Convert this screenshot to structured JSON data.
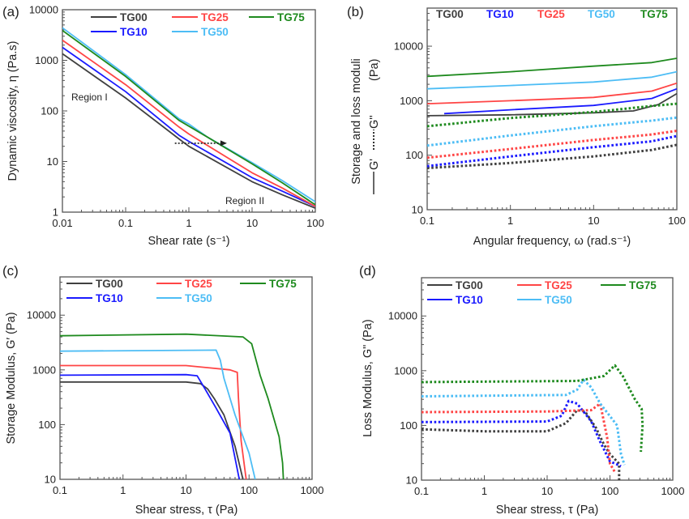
{
  "chart_data": [
    {
      "panel_label": "(a)",
      "type": "line",
      "xlabel": "Shear rate (s⁻¹)",
      "ylabel": "Dynamic viscosity, η (Pa.s)",
      "xscale": "log",
      "yscale": "log",
      "xlim": [
        0.01,
        100
      ],
      "ylim": [
        1,
        10000
      ],
      "x_ticks": [
        "0.01",
        "0.1",
        "1",
        "10",
        "100"
      ],
      "y_ticks": [
        "1",
        "10",
        "100",
        "1000",
        "10000"
      ],
      "grid": false,
      "legend": {
        "placement": "top",
        "style": "line"
      },
      "annotations": [
        "Region I",
        "Region II"
      ],
      "arrow": {
        "from": [
          0.6,
          23
        ],
        "to": [
          4,
          23
        ],
        "style": "dotted"
      },
      "series": [
        {
          "name": "TG00",
          "color": "#404040",
          "style": "solid",
          "points": [
            [
              0.01,
              1350
            ],
            [
              0.1,
              180
            ],
            [
              0.7,
              28
            ],
            [
              1,
              20
            ],
            [
              10,
              4
            ],
            [
              30,
              2.2
            ],
            [
              100,
              1.2
            ]
          ]
        },
        {
          "name": "TG10",
          "color": "#1a1aff",
          "style": "solid",
          "points": [
            [
              0.01,
              1800
            ],
            [
              0.1,
              240
            ],
            [
              0.7,
              33
            ],
            [
              1,
              25
            ],
            [
              10,
              4.8
            ],
            [
              30,
              2.6
            ],
            [
              100,
              1.3
            ]
          ]
        },
        {
          "name": "TG25",
          "color": "#ff4545",
          "style": "solid",
          "points": [
            [
              0.01,
              2500
            ],
            [
              0.1,
              330
            ],
            [
              0.7,
              48
            ],
            [
              1,
              35
            ],
            [
              10,
              6
            ],
            [
              30,
              3
            ],
            [
              100,
              1.3
            ]
          ]
        },
        {
          "name": "TG50",
          "color": "#4dbdf5",
          "style": "solid",
          "points": [
            [
              0.01,
              4400
            ],
            [
              0.1,
              520
            ],
            [
              0.7,
              70
            ],
            [
              1,
              55
            ],
            [
              2,
              30
            ],
            [
              10,
              9.5
            ],
            [
              30,
              4.2
            ],
            [
              100,
              1.6
            ]
          ]
        },
        {
          "name": "TG75",
          "color": "#1e8a1e",
          "style": "solid",
          "points": [
            [
              0.01,
              3900
            ],
            [
              0.1,
              480
            ],
            [
              0.7,
              65
            ],
            [
              1,
              50
            ],
            [
              2,
              30
            ],
            [
              10,
              9
            ],
            [
              30,
              3.8
            ],
            [
              100,
              1.4
            ]
          ]
        }
      ]
    },
    {
      "panel_label": "(b)",
      "type": "line",
      "xlabel": "Angular frequency, ω (rad.s⁻¹)",
      "ylabel": "Storage and loss moduli",
      "ylabel_parts": [
        "G'",
        "G''",
        "(Pa)"
      ],
      "xscale": "log",
      "yscale": "log",
      "xlim": [
        0.1,
        100
      ],
      "ylim": [
        10,
        50000
      ],
      "x_ticks": [
        "0.1",
        "1",
        "10",
        "100"
      ],
      "y_ticks": [
        "10",
        "100",
        "1000",
        "10000"
      ],
      "grid": false,
      "legend": {
        "placement": "top",
        "style": "text"
      },
      "series": [
        {
          "name": "TG00",
          "color": "#404040",
          "style": "solid",
          "points": [
            [
              0.1,
              530
            ],
            [
              1,
              550
            ],
            [
              10,
              600
            ],
            [
              30,
              650
            ],
            [
              60,
              850
            ],
            [
              100,
              1350
            ]
          ]
        },
        {
          "name": "TG10",
          "color": "#1a1aff",
          "style": "solid",
          "points": [
            [
              0.16,
              580
            ],
            [
              1,
              680
            ],
            [
              10,
              820
            ],
            [
              50,
              1100
            ],
            [
              100,
              1650
            ]
          ]
        },
        {
          "name": "TG25",
          "color": "#ff4545",
          "style": "solid",
          "points": [
            [
              0.1,
              880
            ],
            [
              1,
              1000
            ],
            [
              10,
              1150
            ],
            [
              50,
              1500
            ],
            [
              100,
              2100
            ]
          ]
        },
        {
          "name": "TG50",
          "color": "#4dbdf5",
          "style": "solid",
          "points": [
            [
              0.1,
              1650
            ],
            [
              1,
              1900
            ],
            [
              10,
              2200
            ],
            [
              50,
              2700
            ],
            [
              100,
              3400
            ]
          ]
        },
        {
          "name": "TG75",
          "color": "#1e8a1e",
          "style": "solid",
          "points": [
            [
              0.1,
              2800
            ],
            [
              1,
              3400
            ],
            [
              10,
              4300
            ],
            [
              50,
              5000
            ],
            [
              100,
              6000
            ]
          ]
        },
        {
          "name": "TG00",
          "color": "#404040",
          "style": "dotted",
          "points": [
            [
              0.1,
              58
            ],
            [
              1,
              72
            ],
            [
              10,
              95
            ],
            [
              50,
              125
            ],
            [
              100,
              155
            ]
          ]
        },
        {
          "name": "TG10",
          "color": "#1a1aff",
          "style": "dotted",
          "points": [
            [
              0.1,
              63
            ],
            [
              1,
              95
            ],
            [
              10,
              140
            ],
            [
              50,
              180
            ],
            [
              100,
              225
            ]
          ]
        },
        {
          "name": "TG25",
          "color": "#ff4545",
          "style": "dotted",
          "points": [
            [
              0.1,
              90
            ],
            [
              1,
              130
            ],
            [
              10,
              190
            ],
            [
              50,
              240
            ],
            [
              100,
              280
            ]
          ]
        },
        {
          "name": "TG50",
          "color": "#4dbdf5",
          "style": "dotted",
          "points": [
            [
              0.1,
              150
            ],
            [
              1,
              230
            ],
            [
              10,
              340
            ],
            [
              50,
              430
            ],
            [
              100,
              490
            ]
          ]
        },
        {
          "name": "TG75",
          "color": "#1e8a1e",
          "style": "dotted",
          "points": [
            [
              0.1,
              340
            ],
            [
              1,
              480
            ],
            [
              10,
              620
            ],
            [
              50,
              800
            ],
            [
              100,
              880
            ]
          ]
        }
      ]
    },
    {
      "panel_label": "(c)",
      "type": "line",
      "xlabel": "Shear stress, τ (Pa)",
      "ylabel": "Storage Modulus, G′ (Pa)",
      "xscale": "log",
      "yscale": "log",
      "xlim": [
        0.1,
        1000
      ],
      "ylim": [
        10,
        50000
      ],
      "x_ticks": [
        "0.1",
        "1",
        "10",
        "100",
        "1000"
      ],
      "y_ticks": [
        "10",
        "100",
        "1000",
        "10000"
      ],
      "grid": false,
      "legend": {
        "placement": "top",
        "style": "line"
      },
      "series": [
        {
          "name": "TG00",
          "color": "#404040",
          "style": "solid",
          "points": [
            [
              0.1,
              600
            ],
            [
              10,
              600
            ],
            [
              17,
              560
            ],
            [
              22,
              450
            ],
            [
              28,
              300
            ],
            [
              40,
              150
            ],
            [
              60,
              40
            ],
            [
              80,
              10
            ]
          ]
        },
        {
          "name": "TG10",
          "color": "#1a1aff",
          "style": "solid",
          "points": [
            [
              0.1,
              800
            ],
            [
              10,
              820
            ],
            [
              15,
              780
            ],
            [
              20,
              450
            ],
            [
              30,
              200
            ],
            [
              50,
              70
            ],
            [
              70,
              10
            ]
          ]
        },
        {
          "name": "TG25",
          "color": "#ff4545",
          "style": "solid",
          "points": [
            [
              0.1,
              1200
            ],
            [
              10,
              1200
            ],
            [
              50,
              1000
            ],
            [
              65,
              900
            ],
            [
              68,
              300
            ],
            [
              75,
              50
            ],
            [
              90,
              10
            ]
          ]
        },
        {
          "name": "TG50",
          "color": "#4dbdf5",
          "style": "solid",
          "points": [
            [
              0.1,
              2200
            ],
            [
              30,
              2300
            ],
            [
              35,
              1500
            ],
            [
              40,
              700
            ],
            [
              60,
              150
            ],
            [
              100,
              30
            ],
            [
              125,
              10
            ]
          ]
        },
        {
          "name": "TG75",
          "color": "#1e8a1e",
          "style": "solid",
          "points": [
            [
              0.1,
              4200
            ],
            [
              10,
              4500
            ],
            [
              80,
              4000
            ],
            [
              110,
              3000
            ],
            [
              150,
              800
            ],
            [
              200,
              300
            ],
            [
              300,
              60
            ],
            [
              340,
              20
            ],
            [
              350,
              10
            ]
          ]
        }
      ]
    },
    {
      "panel_label": "(d)",
      "type": "line",
      "xlabel": "Shear stress, τ (Pa)",
      "ylabel": "Loss Modulus, G\" (Pa)",
      "xscale": "log",
      "yscale": "log",
      "xlim": [
        0.1,
        1000
      ],
      "ylim": [
        10,
        50000
      ],
      "x_ticks": [
        "0.1",
        "1",
        "10",
        "100",
        "1000"
      ],
      "y_ticks": [
        "10",
        "100",
        "1000",
        "10000"
      ],
      "grid": false,
      "legend": {
        "placement": "top",
        "style": "line"
      },
      "series": [
        {
          "name": "TG00",
          "color": "#404040",
          "style": "dotted",
          "points": [
            [
              0.1,
              85
            ],
            [
              1,
              78
            ],
            [
              10,
              78
            ],
            [
              20,
              110
            ],
            [
              30,
              190
            ],
            [
              40,
              180
            ],
            [
              60,
              90
            ],
            [
              80,
              45
            ],
            [
              100,
              30
            ],
            [
              140,
              20
            ],
            [
              140,
              10
            ]
          ]
        },
        {
          "name": "TG10",
          "color": "#1a1aff",
          "style": "dotted",
          "points": [
            [
              0.1,
              115
            ],
            [
              10,
              118
            ],
            [
              17,
              150
            ],
            [
              22,
              280
            ],
            [
              30,
              250
            ],
            [
              50,
              120
            ],
            [
              70,
              50
            ],
            [
              100,
              22
            ],
            [
              150,
              18
            ]
          ]
        },
        {
          "name": "TG25",
          "color": "#ff4545",
          "style": "dotted",
          "points": [
            [
              0.1,
              175
            ],
            [
              10,
              180
            ],
            [
              50,
              190
            ],
            [
              70,
              250
            ],
            [
              90,
              60
            ],
            [
              100,
              20
            ],
            [
              120,
              14
            ]
          ]
        },
        {
          "name": "TG50",
          "color": "#4dbdf5",
          "style": "dotted",
          "points": [
            [
              0.1,
              340
            ],
            [
              20,
              360
            ],
            [
              30,
              450
            ],
            [
              38,
              680
            ],
            [
              50,
              500
            ],
            [
              70,
              250
            ],
            [
              130,
              100
            ],
            [
              150,
              30
            ],
            [
              170,
              19
            ]
          ]
        },
        {
          "name": "TG75",
          "color": "#1e8a1e",
          "style": "dotted",
          "points": [
            [
              0.1,
              620
            ],
            [
              30,
              650
            ],
            [
              80,
              800
            ],
            [
              120,
              1250
            ],
            [
              160,
              800
            ],
            [
              250,
              300
            ],
            [
              320,
              200
            ],
            [
              330,
              100
            ],
            [
              310,
              33
            ]
          ]
        }
      ]
    }
  ]
}
